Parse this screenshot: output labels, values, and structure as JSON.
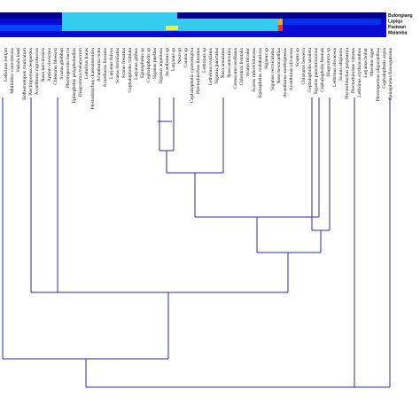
{
  "heatmap": {
    "rows": [
      "Bulongiang",
      "Lapiqu",
      "Pasiwan",
      "Malamba"
    ]
  },
  "leaves": [
    "Lethrinus lentjan",
    "Mulloides vanicolensis",
    "Variola louti",
    "Bolbometopon muricatum",
    "Plectropomus leopardus",
    "Acanthurus nigrofuscus",
    "Naso brevirostris",
    "Aprion virescens",
    "Chlorurus bleekeri",
    "Scarus ghobban",
    "Plectropomus laevis",
    "Epinephelus polyphekadion",
    "Diagramma melanacrum",
    "Lethrinus harak",
    "Plectorhinchus chaetodonoides",
    "Acanthurus mata",
    "Acanthurus lineatus",
    "Lutjanus fulvus",
    "Scarus dimidiatus",
    "Scarus frenatus",
    "Cephalopholis miniata",
    "Lutjanus gibbus",
    "Epinephelus sp",
    "Cephalopholis sp",
    "Siganus puellus",
    "Siganus argenteus",
    "Acanthurus sp",
    "Lutjanus sp",
    "Naso sp",
    "Caranx sp",
    "Cephalopholis cyanostigma",
    "Plectorhinchus lineatus",
    "Lethrinus sp",
    "Lethrinus rivulatus",
    "Siganus punctatus",
    "Naso annulatus",
    "Naso unicornis",
    "Cetoscarus ocellatus",
    "Chlorurus frontalis",
    "Scarus bicolor",
    "Scarus rubroviolaceus",
    "Epinephelus malabaricus",
    "Siganus sp",
    "Siganus vermiculatus",
    "Naso hexacanthus",
    "Acanthurus xanthopterus",
    "Acanthurus olivaceus",
    "Scarus sp",
    "Chlorurus bowersi",
    "Cephalopholis urodeta",
    "Siganus punctatissimus",
    "Cephalopholis boenak",
    "Diagramma sp",
    "Lethrinus olivaceus",
    "Scarus altipinnis",
    "Plectorhinchus polytaenia",
    "Plectorhinchus vittatus",
    "Lethrinus erythracanthus",
    "Lutjanus bohar",
    "Macolor niger",
    "Plectropomus oligacanthus",
    "Cephalopholis argus",
    "Epinephelus fuscoguttatus"
  ]
}
